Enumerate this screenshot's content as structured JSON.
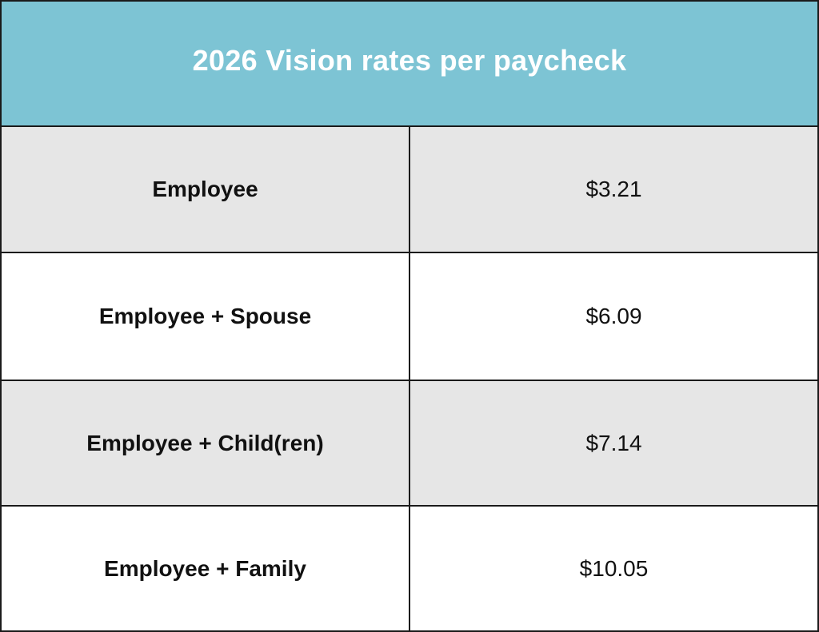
{
  "table": {
    "title": "2026 Vision rates per paycheck",
    "rows": [
      {
        "tier": "Employee",
        "rate": "$3.21"
      },
      {
        "tier": "Employee + Spouse",
        "rate": "$6.09"
      },
      {
        "tier": "Employee + Child(ren)",
        "rate": "$7.14"
      },
      {
        "tier": "Employee + Family",
        "rate": "$10.05"
      }
    ]
  },
  "colors": {
    "header_background": "#7dc4d4",
    "shaded_row": "#e6e6e6",
    "plain_row": "#ffffff",
    "border": "#1a1a1a",
    "header_text": "#ffffff"
  }
}
